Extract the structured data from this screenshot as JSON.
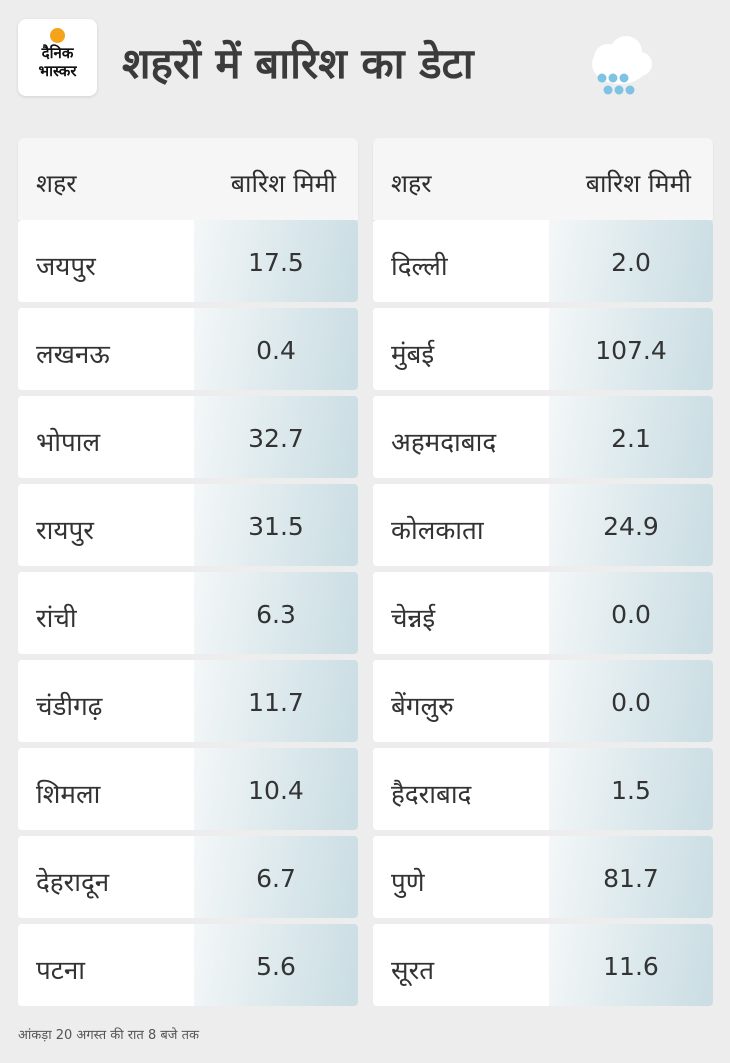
{
  "header": {
    "logo_line1": "दैनिक",
    "logo_line2": "भास्कर",
    "title": "शहरों में बारिश का डेटा",
    "icon": "rain-cloud-icon"
  },
  "columns": {
    "city": "शहर",
    "rain": "बारिश मिमी"
  },
  "left_table": [
    {
      "city": "जयपुर",
      "rain": "17.5"
    },
    {
      "city": "लखनऊ",
      "rain": "0.4"
    },
    {
      "city": "भोपाल",
      "rain": "32.7"
    },
    {
      "city": "रायपुर",
      "rain": "31.5"
    },
    {
      "city": "रांची",
      "rain": "6.3"
    },
    {
      "city": "चंडीगढ़",
      "rain": "11.7"
    },
    {
      "city": "शिमला",
      "rain": "10.4"
    },
    {
      "city": "देहरादून",
      "rain": "6.7"
    },
    {
      "city": "पटना",
      "rain": "5.6"
    }
  ],
  "right_table": [
    {
      "city": "दिल्ली",
      "rain": "2.0"
    },
    {
      "city": "मुंबई",
      "rain": "107.4"
    },
    {
      "city": "अहमदाबाद",
      "rain": "2.1"
    },
    {
      "city": "कोलकाता",
      "rain": "24.9"
    },
    {
      "city": "चेन्नई",
      "rain": "0.0"
    },
    {
      "city": "बेंगलुरु",
      "rain": "0.0"
    },
    {
      "city": "हैदराबाद",
      "rain": "1.5"
    },
    {
      "city": "पुणे",
      "rain": "81.7"
    },
    {
      "city": "सूरत",
      "rain": "11.6"
    }
  ],
  "footnote": "आंकड़ा 20 अगस्त की रात 8 बजे तक",
  "colors": {
    "accent_dot": "#f5a31a",
    "rain_drop": "#7ec3e3",
    "value_cell": "#c9dde3"
  }
}
